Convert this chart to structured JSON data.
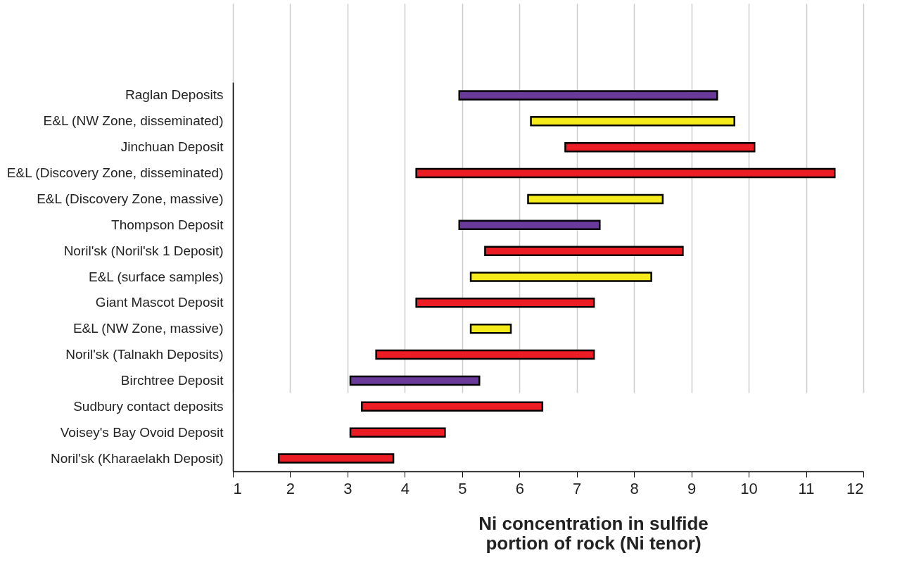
{
  "chart_data": {
    "type": "bar",
    "orientation": "horizontal",
    "xlabel": "Ni concentration in sulfide portion of rock (Ni tenor)",
    "categories": [
      "Raglan Deposits",
      "E&L (NW Zone, disseminated)",
      "Jinchuan Deposit",
      "E&L (Discovery Zone, disseminated)",
      "E&L (Discovery Zone, massive)",
      "Thompson Deposit",
      "Noril'sk (Noril'sk 1 Deposit)",
      "E&L (surface samples)",
      "Giant Mascot Deposit",
      "E&L (NW Zone, massive)",
      "Noril'sk (Talnakh Deposits)",
      "Birchtree Deposit",
      "Sudbury contact deposits",
      "Voisey's Bay Ovoid Deposit",
      "Noril'sk (Kharaelakh Deposit)"
    ],
    "base": [
      4.95,
      6.2,
      6.8,
      4.2,
      6.15,
      4.95,
      5.4,
      5.15,
      4.2,
      5.15,
      3.5,
      3.05,
      3.25,
      3.05,
      1.8
    ],
    "values": [
      4.5,
      3.55,
      3.3,
      7.3,
      2.35,
      2.45,
      3.45,
      3.15,
      3.1,
      0.7,
      3.8,
      2.25,
      3.15,
      1.65,
      2.0
    ],
    "colors": [
      "#6a3a9a",
      "#f5eb1a",
      "#ec1c24",
      "#ec1c24",
      "#f5eb1a",
      "#6a3a9a",
      "#ec1c24",
      "#f5eb1a",
      "#ec1c24",
      "#f5eb1a",
      "#ec1c24",
      "#6a3a9a",
      "#ec1c24",
      "#ec1c24",
      "#ec1c24"
    ],
    "xlim": [
      1,
      12
    ],
    "xticks": [
      1,
      2,
      3,
      4,
      5,
      6,
      7,
      8,
      9,
      10,
      11,
      12
    ],
    "grid": "x"
  }
}
